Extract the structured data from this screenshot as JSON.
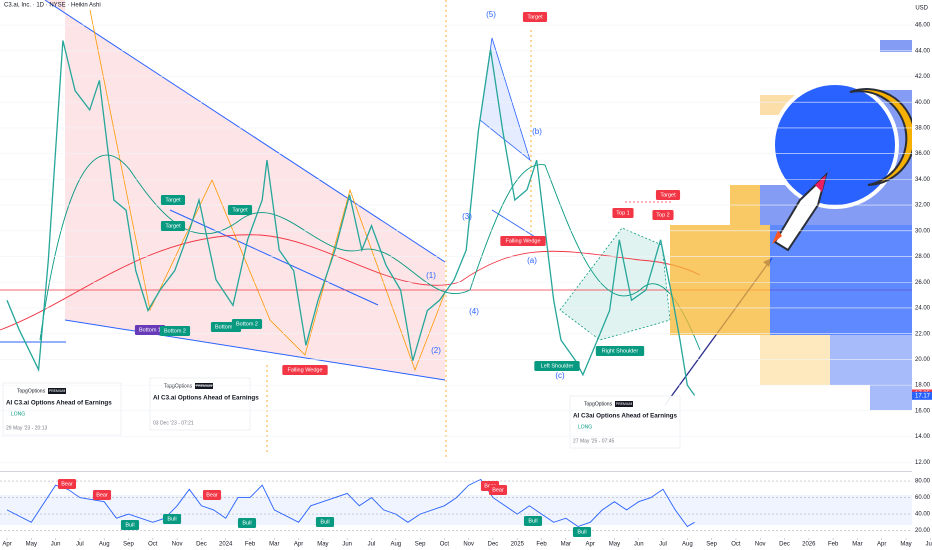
{
  "header": {
    "title": "C3.ai, Inc. · 1D · NYSE · Heikin Ashi",
    "currency": "USD"
  },
  "chart_data": [
    {
      "type": "line",
      "color": "#26a69a",
      "x": [
        0,
        0.5,
        1.3,
        1.7,
        2.3,
        2.8,
        3.4,
        3.8,
        4.4,
        4.9,
        5.3,
        5.8,
        6.3,
        6.9,
        7.5,
        7.9,
        8.6,
        9.3,
        9.9,
        10.5,
        10.7,
        11.2,
        11.8,
        12.3,
        12.8,
        13.5,
        14.1,
        14.6,
        15,
        15.6,
        16.2,
        16.7,
        17.3,
        17.8,
        18.4,
        18.9,
        19.4,
        19.9,
        20.4,
        20.9,
        21.4,
        21.8,
        22.1,
        22.5,
        22.8,
        23.4,
        23.7,
        24.3,
        24.8,
        25.2,
        25.7,
        26.3,
        26.9,
        27.4,
        27.7,
        28,
        28.3
      ],
      "values": [
        24.6,
        22.3,
        19.2,
        27.7,
        44.8,
        40.9,
        39.4,
        41.7,
        32.4,
        31.6,
        26.9,
        23.8,
        25.4,
        26.9,
        30,
        32.4,
        26.2,
        24.2,
        29.3,
        32.4,
        35.5,
        28.5,
        26.9,
        21.1,
        24.6,
        28.5,
        32.8,
        28.5,
        30.4,
        27.3,
        25.4,
        19.9,
        23.8,
        24.6,
        26.2,
        28.5,
        37.8,
        44.1,
        37.8,
        32.4,
        33.2,
        35.5,
        30.8,
        24.6,
        21.5,
        19.9,
        18.8,
        21.5,
        23.8,
        29.3,
        24.6,
        25.4,
        29.3,
        24.6,
        21.5,
        18,
        17.2
      ],
      "xlim": [
        -0.29,
        38.07
      ],
      "ylim": [
        11.4,
        47.95
      ],
      "xticks": [
        {
          "value": 0,
          "label": "Apr"
        },
        {
          "value": 1,
          "label": "May"
        },
        {
          "value": 2,
          "label": "Jun"
        },
        {
          "value": 3,
          "label": "Jul"
        },
        {
          "value": 4,
          "label": "Aug"
        },
        {
          "value": 5,
          "label": "Sep"
        },
        {
          "value": 6,
          "label": "Oct"
        },
        {
          "value": 7,
          "label": "Nov"
        },
        {
          "value": 8,
          "label": "Dec"
        },
        {
          "value": 9,
          "label": "2024"
        },
        {
          "value": 10,
          "label": "Feb"
        },
        {
          "value": 11,
          "label": "Mar"
        },
        {
          "value": 12,
          "label": "Apr"
        },
        {
          "value": 13,
          "label": "May"
        },
        {
          "value": 14,
          "label": "Jun"
        },
        {
          "value": 15,
          "label": "Jul"
        },
        {
          "value": 16,
          "label": "Aug"
        },
        {
          "value": 17,
          "label": "Sep"
        },
        {
          "value": 18,
          "label": "Oct"
        },
        {
          "value": 19,
          "label": "Nov"
        },
        {
          "value": 20,
          "label": "Dec"
        },
        {
          "value": 21,
          "label": "2025"
        },
        {
          "value": 22,
          "label": "Feb"
        },
        {
          "value": 23,
          "label": "Mar"
        },
        {
          "value": 24,
          "label": "Apr"
        },
        {
          "value": 25,
          "label": "May"
        },
        {
          "value": 26,
          "label": "Jun"
        },
        {
          "value": 27,
          "label": "Jul"
        },
        {
          "value": 28,
          "label": "Aug"
        },
        {
          "value": 29,
          "label": "Sep"
        },
        {
          "value": 30,
          "label": "Oct"
        },
        {
          "value": 31,
          "label": "Nov"
        },
        {
          "value": 32,
          "label": "Dec"
        },
        {
          "value": 33,
          "label": "2026"
        },
        {
          "value": 34,
          "label": "Feb"
        },
        {
          "value": 35,
          "label": "Mar"
        },
        {
          "value": 36,
          "label": "Apr"
        },
        {
          "value": 37,
          "label": "May"
        },
        {
          "value": 38,
          "label": "Jun"
        }
      ],
      "yticks": [
        {
          "value": 12,
          "label": "12.00"
        },
        {
          "value": 14,
          "label": "14.00"
        },
        {
          "value": 16,
          "label": "16.00"
        },
        {
          "value": 18,
          "label": "18.00"
        },
        {
          "value": 20,
          "label": "20.00"
        },
        {
          "value": 22,
          "label": "22.00"
        },
        {
          "value": 24,
          "label": "24.00"
        },
        {
          "value": 26,
          "label": "26.00"
        },
        {
          "value": 28,
          "label": "28.00"
        },
        {
          "value": 30,
          "label": "30.00"
        },
        {
          "value": 32,
          "label": "32.00"
        },
        {
          "value": 34,
          "label": "34.00"
        },
        {
          "value": 36,
          "label": "36.00"
        },
        {
          "value": 38,
          "label": "38.00"
        },
        {
          "value": 40,
          "label": "40.00"
        },
        {
          "value": 42,
          "label": "42.00"
        },
        {
          "value": 44,
          "label": "44.00"
        },
        {
          "value": 46,
          "label": "46.00"
        }
      ],
      "price_labels": [
        {
          "value": 17.35,
          "label": "17.35",
          "color": "#f23645"
        },
        {
          "value": 17.17,
          "label": "17.17",
          "color": "#2962ff"
        }
      ],
      "annotations": [
        {
          "text": "Target",
          "color": "#089981"
        },
        {
          "text": "Target",
          "color": "#089981"
        },
        {
          "text": "Target",
          "color": "#089981"
        },
        {
          "text": "Bottom 1",
          "color": "#673ab7"
        },
        {
          "text": "Bottom 2",
          "color": "#089981"
        },
        {
          "text": "Bottom 1",
          "color": "#089981"
        },
        {
          "text": "Bottom 2",
          "color": "#089981"
        },
        {
          "text": "Falling Wedge",
          "color": "#f23645"
        },
        {
          "text": "Falling Wedge",
          "color": "#f23645"
        },
        {
          "text": "Target",
          "color": "#f23645"
        },
        {
          "text": "Target",
          "color": "#f23645"
        },
        {
          "text": "Top 1",
          "color": "#f23645"
        },
        {
          "text": "Top 2",
          "color": "#f23645"
        },
        {
          "text": "Left Shoulder",
          "color": "#089981"
        },
        {
          "text": "Right Shoulder",
          "color": "#089981"
        },
        {
          "text": "(1)"
        },
        {
          "text": "(2)"
        },
        {
          "text": "(3)"
        },
        {
          "text": "(4)"
        },
        {
          "text": "(5)"
        },
        {
          "text": "(a)"
        },
        {
          "text": "(b)"
        },
        {
          "text": "(c)"
        }
      ]
    },
    {
      "type": "line",
      "color": "#2962ff",
      "x": [
        0,
        1,
        2,
        2.5,
        3,
        4,
        4.5,
        5,
        6,
        6.5,
        7,
        7.5,
        8,
        8.5,
        9,
        9.5,
        10,
        10.5,
        11,
        12,
        12.5,
        13,
        14,
        14.5,
        15,
        15.5,
        16,
        16.5,
        17,
        18,
        18.5,
        19,
        19.5,
        20,
        21,
        21.5,
        22,
        22.5,
        23,
        23.5,
        24,
        24.5,
        25,
        25.5,
        26,
        26.5,
        27,
        27.5,
        28,
        28.3
      ],
      "values": [
        45,
        30,
        75,
        70,
        60,
        55,
        35,
        40,
        30,
        35,
        50,
        70,
        50,
        45,
        35,
        60,
        60,
        75,
        45,
        30,
        50,
        55,
        65,
        50,
        60,
        45,
        40,
        30,
        40,
        50,
        60,
        75,
        82,
        60,
        40,
        50,
        40,
        30,
        35,
        25,
        30,
        45,
        55,
        45,
        55,
        60,
        70,
        45,
        25,
        30
      ],
      "xlim": [
        -0.29,
        38.07
      ],
      "ylim": [
        11,
        91
      ],
      "yticks": [
        {
          "value": 20,
          "label": "20.00"
        },
        {
          "value": 40,
          "label": "40.00"
        },
        {
          "value": 60,
          "label": "60.00"
        },
        {
          "value": 80,
          "label": "80.00"
        }
      ],
      "annotations": [
        {
          "text": "Bear",
          "color": "#f23645"
        },
        {
          "text": "Bear",
          "color": "#f23645"
        },
        {
          "text": "Bear",
          "color": "#f23645"
        },
        {
          "text": "Bear",
          "color": "#f23645"
        },
        {
          "text": "Bear",
          "color": "#f23645"
        },
        {
          "text": "Bull",
          "color": "#089981"
        },
        {
          "text": "Bull",
          "color": "#089981"
        },
        {
          "text": "Bull",
          "color": "#089981"
        },
        {
          "text": "Bull",
          "color": "#089981"
        },
        {
          "text": "Bull",
          "color": "#089981"
        },
        {
          "text": "Bull",
          "color": "#089981"
        }
      ]
    }
  ],
  "idea_cards": [
    {
      "author": "TopgOptions",
      "badge": "PREMIUM",
      "title": "AI C3.ai Options Ahead of Earnings",
      "direction": "LONG",
      "date": "29 May '23 - 20:13"
    },
    {
      "author": "TopgOptions",
      "badge": "PREMIUM",
      "title": "AI C3.ai Options Ahead of Earnings",
      "date": "03 Dec '23 - 07:21"
    },
    {
      "author": "TopgOptions",
      "badge": "PREMIUM",
      "title": "AI C3ai Options Ahead of Earnings",
      "direction": "LONG",
      "date": "27 May '25 - 07:45"
    }
  ]
}
